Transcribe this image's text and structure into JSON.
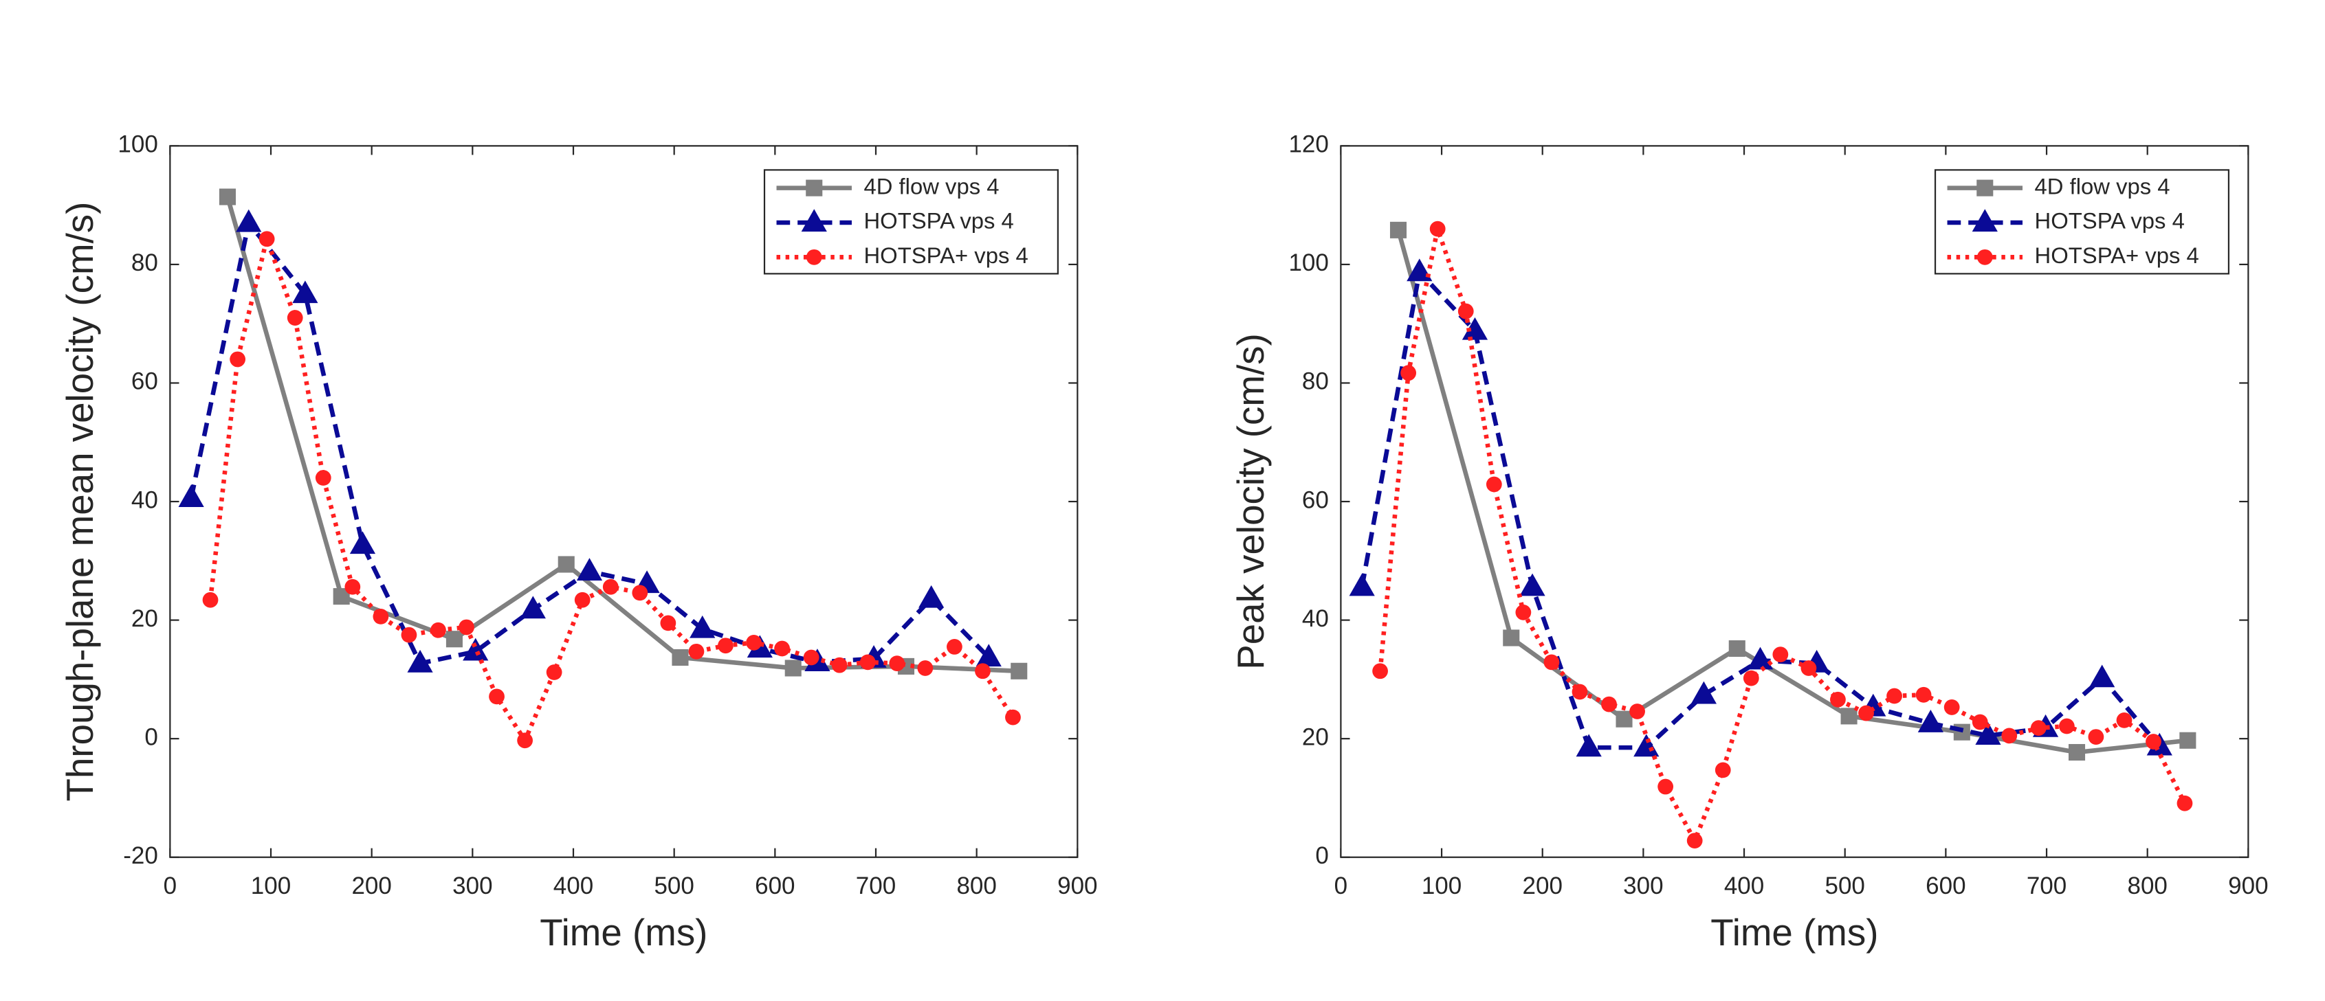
{
  "chart_data": [
    {
      "type": "line",
      "xlabel": "Time (ms)",
      "ylabel": "Through-plane mean velocity (cm/s)",
      "xlim": [
        0,
        900
      ],
      "xticks": [
        0,
        100,
        200,
        300,
        400,
        500,
        600,
        700,
        800,
        900
      ],
      "ylim": [
        -20,
        100
      ],
      "yticks": [
        -20,
        0,
        20,
        40,
        60,
        80,
        100
      ],
      "legend": "northeast",
      "series": [
        {
          "name": "4D flow vps 4",
          "color": "#808080",
          "line_style": "solid",
          "marker": "square",
          "x": [
            57,
            170,
            282,
            393,
            506,
            618,
            730,
            842
          ],
          "values": [
            91.4,
            24,
            16.8,
            29.4,
            13.7,
            11.9,
            12.2,
            11.4
          ]
        },
        {
          "name": "HOTSPA vps 4",
          "color": "#0a0a96",
          "line_style": "dashed",
          "marker": "triangle",
          "x": [
            21,
            78,
            134,
            191,
            248,
            303,
            360,
            416,
            473,
            528,
            585,
            642,
            698,
            755,
            812
          ],
          "values": [
            40.6,
            87,
            75,
            32.7,
            12.7,
            14.7,
            21.8,
            28.2,
            26.1,
            18.5,
            15.2,
            12.9,
            13.5,
            23.6,
            13.7
          ]
        },
        {
          "name": "HOTSPA+ vps 4",
          "color": "#ff2020",
          "line_style": "dotted",
          "marker": "circle",
          "x": [
            40,
            67,
            96,
            124,
            152,
            181,
            209,
            237,
            266,
            294,
            324,
            352,
            381,
            409,
            437,
            466,
            494,
            522,
            551,
            579,
            607,
            636,
            664,
            692,
            721,
            749,
            778,
            806,
            836
          ],
          "values": [
            23.4,
            64,
            84.3,
            71,
            44,
            25.6,
            20.6,
            17.5,
            18.3,
            18.8,
            7.1,
            -0.3,
            11.2,
            23.4,
            25.6,
            24.6,
            19.5,
            14.7,
            15.7,
            16.2,
            15.2,
            13.7,
            12.4,
            12.9,
            12.7,
            11.9,
            15.5,
            11.4,
            3.6
          ]
        }
      ]
    },
    {
      "type": "line",
      "xlabel": "Time (ms)",
      "ylabel": "Peak velocity (cm/s)",
      "xlim": [
        0,
        900
      ],
      "xticks": [
        0,
        100,
        200,
        300,
        400,
        500,
        600,
        700,
        800,
        900
      ],
      "ylim": [
        0,
        120
      ],
      "yticks": [
        0,
        20,
        40,
        60,
        80,
        100,
        120
      ],
      "legend": "northeast",
      "series": [
        {
          "name": "4D flow vps 4",
          "color": "#808080",
          "line_style": "solid",
          "marker": "square",
          "x": [
            57,
            169,
            281,
            393,
            504,
            616,
            730,
            840
          ],
          "values": [
            105.8,
            37,
            23.3,
            35.2,
            23.8,
            21.1,
            17.7,
            19.7
          ]
        },
        {
          "name": "HOTSPA vps 4",
          "color": "#0a0a96",
          "line_style": "dashed",
          "marker": "triangle",
          "x": [
            21,
            78,
            133,
            190,
            246,
            303,
            360,
            416,
            472,
            528,
            585,
            642,
            699,
            755,
            812
          ],
          "values": [
            45.6,
            98.7,
            88.8,
            45.6,
            18.5,
            18.5,
            27.4,
            33.2,
            32.7,
            25.3,
            22.6,
            20.5,
            21.8,
            30.2,
            18.7
          ]
        },
        {
          "name": "HOTSPA+ vps 4",
          "color": "#ff2020",
          "line_style": "dotted",
          "marker": "circle",
          "x": [
            39,
            67,
            96,
            124,
            152,
            181,
            209,
            237,
            266,
            294,
            322,
            351,
            379,
            407,
            436,
            464,
            493,
            521,
            549,
            578,
            606,
            634,
            663,
            692,
            720,
            749,
            777,
            806,
            837
          ],
          "values": [
            31.4,
            81.7,
            106,
            92.1,
            62.9,
            41.3,
            32.9,
            27.9,
            25.8,
            24.6,
            11.9,
            2.8,
            14.7,
            30.2,
            34.2,
            31.9,
            26.6,
            24.3,
            27.2,
            27.4,
            25.3,
            22.8,
            20.5,
            21.8,
            22.1,
            20.3,
            23.1,
            19.5,
            9.1
          ]
        }
      ]
    }
  ]
}
